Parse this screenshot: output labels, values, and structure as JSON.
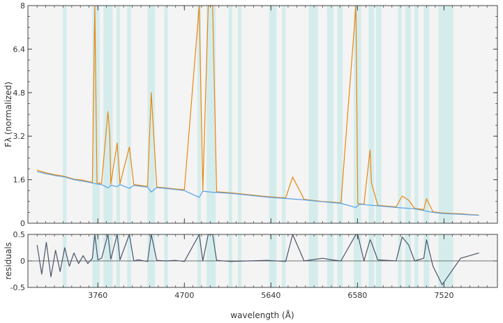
{
  "chart_data": [
    {
      "type": "line",
      "panel": "spectrum",
      "ylabel": "Fλ (normalized)",
      "xlim": [
        3000,
        8100
      ],
      "ylim": [
        0,
        8
      ],
      "yticks": [
        "0",
        "1.6",
        "3.2",
        "4.8",
        "6.4",
        "8"
      ],
      "ytick_values": [
        0,
        1.6,
        3.2,
        4.8,
        6.4,
        8
      ],
      "grid": false,
      "series": [
        {
          "role": "observed",
          "color": "#e8870e",
          "x": [
            3100,
            3200,
            3300,
            3400,
            3500,
            3600,
            3700,
            3727,
            3750,
            3800,
            3869,
            3889,
            3900,
            3970,
            4000,
            4102,
            4150,
            4200,
            4300,
            4340,
            4400,
            4500,
            4600,
            4700,
            4861,
            4900,
            4959,
            5007,
            5050,
            5200,
            5400,
            5600,
            5800,
            5876,
            6000,
            6200,
            6300,
            6400,
            6563,
            6583,
            6650,
            6717,
            6731,
            6800,
            7000,
            7065,
            7136,
            7200,
            7300,
            7330,
            7400,
            7500,
            7600,
            7700,
            7800,
            7900
          ],
          "y": [
            1.95,
            1.85,
            1.78,
            1.72,
            1.62,
            1.58,
            1.5,
            8,
            1.48,
            1.46,
            4.1,
            3.3,
            1.44,
            2.95,
            1.45,
            2.8,
            1.42,
            1.4,
            1.35,
            4.8,
            1.33,
            1.3,
            1.26,
            1.23,
            8,
            1.21,
            8,
            8,
            1.16,
            1.12,
            1.05,
            0.98,
            0.93,
            1.7,
            0.88,
            0.8,
            0.78,
            0.75,
            8,
            0.72,
            0.7,
            2.7,
            1.5,
            0.66,
            0.6,
            1.0,
            0.85,
            0.55,
            0.5,
            0.9,
            0.42,
            0.38,
            0.36,
            0.35,
            0.32,
            0.3
          ]
        },
        {
          "role": "model",
          "color": "#5aa0e6",
          "x": [
            3100,
            3200,
            3300,
            3400,
            3500,
            3600,
            3700,
            3750,
            3800,
            3869,
            3889,
            3900,
            3970,
            4000,
            4102,
            4150,
            4200,
            4300,
            4340,
            4400,
            4500,
            4600,
            4700,
            4861,
            4900,
            5000,
            5200,
            5400,
            5600,
            5800,
            6000,
            6200,
            6400,
            6563,
            6600,
            6800,
            7000,
            7200,
            7400,
            7500,
            7600,
            7700,
            7800,
            7900
          ],
          "y": [
            1.9,
            1.82,
            1.75,
            1.7,
            1.6,
            1.55,
            1.48,
            1.44,
            1.42,
            1.3,
            1.35,
            1.4,
            1.34,
            1.42,
            1.28,
            1.39,
            1.37,
            1.33,
            1.15,
            1.31,
            1.28,
            1.24,
            1.2,
            0.95,
            1.18,
            1.14,
            1.1,
            1.03,
            0.96,
            0.91,
            0.86,
            0.79,
            0.73,
            0.58,
            0.7,
            0.64,
            0.58,
            0.53,
            0.4,
            0.36,
            0.34,
            0.33,
            0.31,
            0.29
          ]
        }
      ]
    },
    {
      "type": "line",
      "panel": "residuals",
      "xlabel": "wavelength (Å)",
      "ylabel": "residuals",
      "xlim": [
        3000,
        8100
      ],
      "ylim": [
        -0.5,
        0.5
      ],
      "xticks": [
        "3760",
        "4700",
        "5640",
        "6580",
        "7520"
      ],
      "xtick_values": [
        3760,
        4700,
        5640,
        6580,
        7520
      ],
      "yticks": [
        "-0.5",
        "0",
        "0.5"
      ],
      "ytick_values": [
        -0.5,
        0,
        0.5
      ],
      "zero_line": true,
      "series": [
        {
          "role": "residuals",
          "color": "#4a5468",
          "x": [
            3100,
            3150,
            3200,
            3250,
            3300,
            3350,
            3400,
            3450,
            3500,
            3550,
            3600,
            3650,
            3700,
            3727,
            3760,
            3800,
            3869,
            3900,
            3970,
            4000,
            4102,
            4150,
            4200,
            4300,
            4340,
            4400,
            4500,
            4600,
            4700,
            4861,
            4900,
            4959,
            5007,
            5050,
            5200,
            5400,
            5600,
            5800,
            5876,
            6000,
            6200,
            6300,
            6400,
            6563,
            6583,
            6650,
            6717,
            6731,
            6800,
            7000,
            7065,
            7136,
            7200,
            7300,
            7330,
            7400,
            7500,
            7600,
            7700,
            7800,
            7900
          ],
          "y": [
            0.3,
            -0.25,
            0.35,
            -0.3,
            0.2,
            -0.2,
            0.25,
            -0.1,
            0.15,
            -0.05,
            0.1,
            -0.05,
            0.05,
            0.5,
            0.02,
            0.05,
            0.5,
            0.03,
            0.5,
            0.02,
            0.5,
            0.0,
            0.02,
            -0.01,
            0.5,
            0.01,
            0.0,
            0.01,
            -0.01,
            0.5,
            0.0,
            0.5,
            0.5,
            0.01,
            -0.01,
            0.0,
            0.01,
            -0.01,
            0.5,
            0.0,
            0.05,
            0.02,
            0.0,
            0.5,
            0.5,
            0.0,
            0.4,
            0.35,
            0.02,
            0.0,
            0.45,
            0.3,
            0.0,
            0.05,
            0.4,
            -0.1,
            -0.45,
            -0.2,
            0.05,
            0.1,
            0.15
          ]
        }
      ]
    }
  ],
  "masked_regions": [
    [
      3380,
      3420
    ],
    [
      3700,
      3780
    ],
    [
      3820,
      3920
    ],
    [
      3960,
      4000
    ],
    [
      4080,
      4120
    ],
    [
      4300,
      4380
    ],
    [
      4480,
      4520
    ],
    [
      4840,
      4880
    ],
    [
      4940,
      5040
    ],
    [
      5180,
      5220
    ],
    [
      5280,
      5320
    ],
    [
      5620,
      5700
    ],
    [
      5760,
      5800
    ],
    [
      6050,
      6150
    ],
    [
      6250,
      6320
    ],
    [
      6360,
      6420
    ],
    [
      6540,
      6620
    ],
    [
      6700,
      6760
    ],
    [
      6780,
      6840
    ],
    [
      7020,
      7060
    ],
    [
      7100,
      7160
    ],
    [
      7200,
      7240
    ],
    [
      7300,
      7360
    ],
    [
      7460,
      7620
    ]
  ],
  "colors": {
    "panel_bg": "#f4f4f4",
    "mask_fill": "#d5ecec",
    "axis": "#444444",
    "observed": "#e8870e",
    "model": "#5aa0e6",
    "residuals": "#4a5468"
  }
}
